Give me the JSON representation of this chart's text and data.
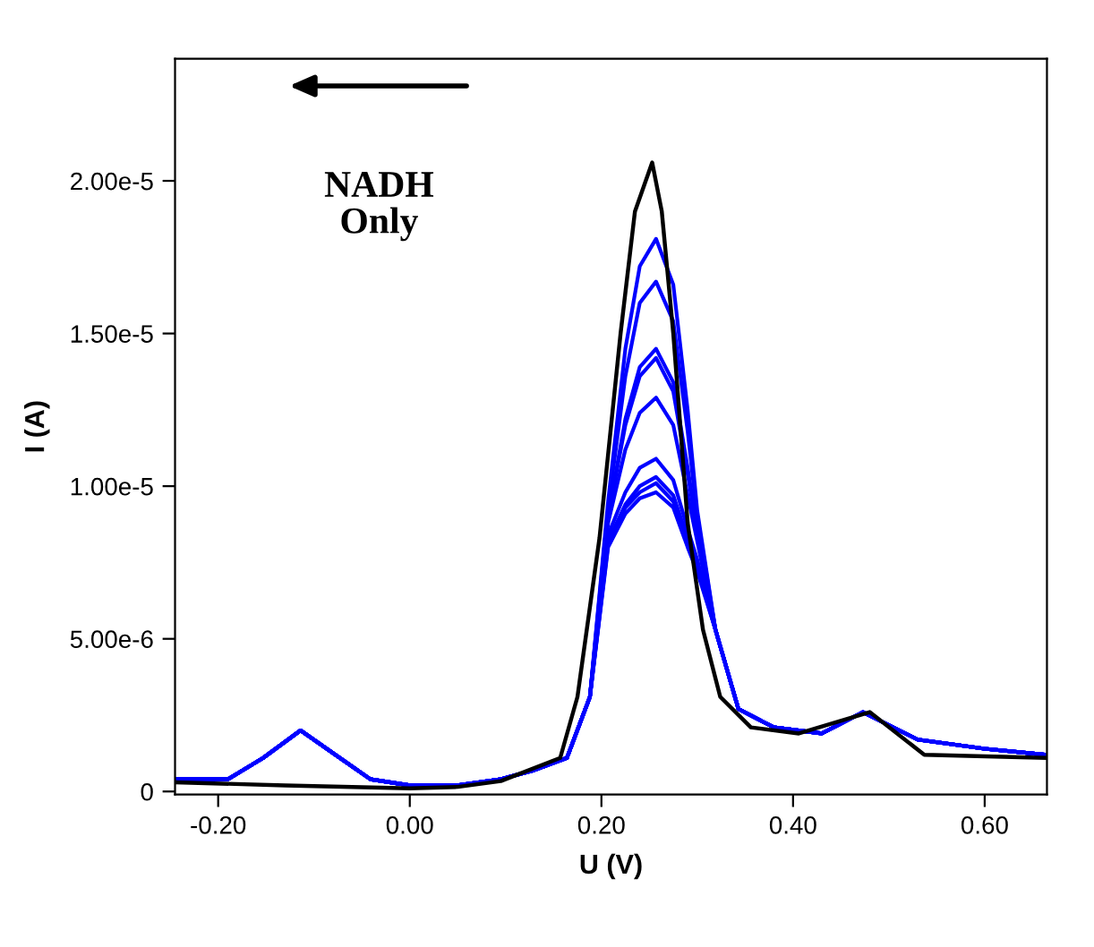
{
  "chart_data": {
    "type": "line",
    "xlabel": "U (V)",
    "ylabel": "I (A)",
    "annotations": [
      "NADH\nOnly"
    ],
    "xlim": [
      -0.245,
      0.665
    ],
    "ylim": [
      -1e-07,
      2.4e-05
    ],
    "xticks": [
      {
        "value": -0.2,
        "label": "-0.20"
      },
      {
        "value": 0.0,
        "label": "0.00"
      },
      {
        "value": 0.2,
        "label": "0.20"
      },
      {
        "value": 0.4,
        "label": "0.40"
      },
      {
        "value": 0.6,
        "label": "0.60"
      }
    ],
    "yticks": [
      0,
      {
        "value": 5e-06,
        "label": "5.00e-6"
      },
      {
        "value": 1e-05,
        "label": "1.00e-5"
      },
      {
        "value": 1.5e-05,
        "label": "1.50e-5"
      },
      {
        "value": 2e-05,
        "label": "2.00e-5"
      }
    ],
    "grid": false,
    "series": [
      {
        "color": "#0000ff",
        "x": [
          -0.245,
          -0.19,
          -0.153,
          -0.114,
          -0.073,
          -0.041,
          0.0,
          0.05,
          0.095,
          0.13,
          0.164,
          0.188,
          0.207,
          0.225,
          0.24,
          0.257,
          0.275,
          0.29,
          0.3,
          0.319,
          0.343,
          0.38,
          0.43,
          0.473,
          0.53,
          0.6,
          0.665
        ],
        "values": [
          4e-07,
          4e-07,
          1.1e-06,
          2e-06,
          1.1e-06,
          4e-07,
          2e-07,
          2e-07,
          4e-07,
          7e-07,
          1.1e-06,
          3.1e-06,
          9.5e-06,
          1.45e-05,
          1.72e-05,
          1.81e-05,
          1.66e-05,
          1.25e-05,
          9.2e-06,
          5.3e-06,
          2.7e-06,
          2.1e-06,
          1.9e-06,
          2.6e-06,
          1.7e-06,
          1.4e-06,
          1.2e-06
        ]
      },
      {
        "color": "#0000ff",
        "x": [
          -0.245,
          -0.19,
          -0.153,
          -0.114,
          -0.073,
          -0.041,
          0.0,
          0.05,
          0.095,
          0.13,
          0.164,
          0.188,
          0.207,
          0.225,
          0.24,
          0.257,
          0.275,
          0.29,
          0.3,
          0.319,
          0.343,
          0.38,
          0.43,
          0.473,
          0.53,
          0.6,
          0.665
        ],
        "values": [
          4e-07,
          4e-07,
          1.1e-06,
          2e-06,
          1.1e-06,
          4e-07,
          2e-07,
          2e-07,
          4e-07,
          7e-07,
          1.1e-06,
          3.1e-06,
          9.3e-06,
          1.36e-05,
          1.6e-05,
          1.67e-05,
          1.54e-05,
          1.18e-05,
          9e-06,
          5.3e-06,
          2.7e-06,
          2.1e-06,
          1.9e-06,
          2.6e-06,
          1.7e-06,
          1.4e-06,
          1.2e-06
        ]
      },
      {
        "color": "#0000ff",
        "x": [
          -0.245,
          -0.19,
          -0.153,
          -0.114,
          -0.073,
          -0.041,
          0.0,
          0.05,
          0.095,
          0.13,
          0.164,
          0.188,
          0.207,
          0.225,
          0.24,
          0.257,
          0.275,
          0.29,
          0.3,
          0.319,
          0.343,
          0.38,
          0.43,
          0.473,
          0.53,
          0.6,
          0.665
        ],
        "values": [
          4e-07,
          4e-07,
          1.1e-06,
          2e-06,
          1.1e-06,
          4e-07,
          2e-07,
          2e-07,
          4e-07,
          7e-07,
          1.1e-06,
          3.1e-06,
          9e-06,
          1.22e-05,
          1.39e-05,
          1.45e-05,
          1.34e-05,
          1.06e-05,
          8.6e-06,
          5.3e-06,
          2.7e-06,
          2.1e-06,
          1.9e-06,
          2.6e-06,
          1.7e-06,
          1.4e-06,
          1.2e-06
        ]
      },
      {
        "color": "#0000ff",
        "x": [
          -0.245,
          -0.19,
          -0.153,
          -0.114,
          -0.073,
          -0.041,
          0.0,
          0.05,
          0.095,
          0.13,
          0.164,
          0.188,
          0.207,
          0.225,
          0.24,
          0.257,
          0.275,
          0.29,
          0.3,
          0.319,
          0.343,
          0.38,
          0.43,
          0.473,
          0.53,
          0.6,
          0.665
        ],
        "values": [
          4e-07,
          4e-07,
          1.1e-06,
          2e-06,
          1.1e-06,
          4e-07,
          2e-07,
          2e-07,
          4e-07,
          7e-07,
          1.1e-06,
          3.1e-06,
          9e-06,
          1.2e-05,
          1.36e-05,
          1.42e-05,
          1.31e-05,
          1.04e-05,
          8.5e-06,
          5.3e-06,
          2.7e-06,
          2.1e-06,
          1.9e-06,
          2.6e-06,
          1.7e-06,
          1.4e-06,
          1.2e-06
        ]
      },
      {
        "color": "#0000ff",
        "x": [
          -0.245,
          -0.19,
          -0.153,
          -0.114,
          -0.073,
          -0.041,
          0.0,
          0.05,
          0.095,
          0.13,
          0.164,
          0.188,
          0.207,
          0.225,
          0.24,
          0.257,
          0.275,
          0.29,
          0.3,
          0.319,
          0.343,
          0.38,
          0.43,
          0.473,
          0.53,
          0.6,
          0.665
        ],
        "values": [
          4e-07,
          4e-07,
          1.1e-06,
          2e-06,
          1.1e-06,
          4e-07,
          2e-07,
          2e-07,
          4e-07,
          7e-07,
          1.1e-06,
          3.1e-06,
          8.8e-06,
          1.12e-05,
          1.24e-05,
          1.29e-05,
          1.2e-05,
          9.7e-06,
          8.2e-06,
          5.3e-06,
          2.7e-06,
          2.1e-06,
          1.9e-06,
          2.6e-06,
          1.7e-06,
          1.4e-06,
          1.2e-06
        ]
      },
      {
        "color": "#0000ff",
        "x": [
          -0.245,
          -0.19,
          -0.153,
          -0.114,
          -0.073,
          -0.041,
          0.0,
          0.05,
          0.095,
          0.13,
          0.164,
          0.188,
          0.207,
          0.225,
          0.24,
          0.257,
          0.275,
          0.29,
          0.3,
          0.319,
          0.343,
          0.38,
          0.43,
          0.473,
          0.53,
          0.6,
          0.665
        ],
        "values": [
          4e-07,
          4e-07,
          1.1e-06,
          2e-06,
          1.1e-06,
          4e-07,
          2e-07,
          2e-07,
          4e-07,
          7e-07,
          1.1e-06,
          3.1e-06,
          8.4e-06,
          9.8e-06,
          1.06e-05,
          1.09e-05,
          1.02e-05,
          8.6e-06,
          7.6e-06,
          5.3e-06,
          2.7e-06,
          2.1e-06,
          1.9e-06,
          2.6e-06,
          1.7e-06,
          1.4e-06,
          1.2e-06
        ]
      },
      {
        "color": "#0000ff",
        "x": [
          -0.245,
          -0.19,
          -0.153,
          -0.114,
          -0.073,
          -0.041,
          0.0,
          0.05,
          0.095,
          0.13,
          0.164,
          0.188,
          0.207,
          0.225,
          0.24,
          0.257,
          0.275,
          0.29,
          0.3,
          0.319,
          0.343,
          0.38,
          0.43,
          0.473,
          0.53,
          0.6,
          0.665
        ],
        "values": [
          4e-07,
          4e-07,
          1.1e-06,
          2e-06,
          1.1e-06,
          4e-07,
          2e-07,
          2e-07,
          4e-07,
          7e-07,
          1.1e-06,
          3.1e-06,
          8.2e-06,
          9.4e-06,
          1e-05,
          1.03e-05,
          9.7e-06,
          8.3e-06,
          7.4e-06,
          5.3e-06,
          2.7e-06,
          2.1e-06,
          1.9e-06,
          2.6e-06,
          1.7e-06,
          1.4e-06,
          1.2e-06
        ]
      },
      {
        "color": "#0000ff",
        "x": [
          -0.245,
          -0.19,
          -0.153,
          -0.114,
          -0.073,
          -0.041,
          0.0,
          0.05,
          0.095,
          0.13,
          0.164,
          0.188,
          0.207,
          0.225,
          0.24,
          0.257,
          0.275,
          0.29,
          0.3,
          0.319,
          0.343,
          0.38,
          0.43,
          0.473,
          0.53,
          0.6,
          0.665
        ],
        "values": [
          4e-07,
          4e-07,
          1.1e-06,
          2e-06,
          1.1e-06,
          4e-07,
          2e-07,
          2e-07,
          4e-07,
          7e-07,
          1.1e-06,
          3.1e-06,
          8.1e-06,
          9.3e-06,
          9.8e-06,
          1.01e-05,
          9.5e-06,
          8.2e-06,
          7.3e-06,
          5.3e-06,
          2.7e-06,
          2.1e-06,
          1.9e-06,
          2.6e-06,
          1.7e-06,
          1.4e-06,
          1.2e-06
        ]
      },
      {
        "color": "#0000ff",
        "x": [
          -0.245,
          -0.19,
          -0.153,
          -0.114,
          -0.073,
          -0.041,
          0.0,
          0.05,
          0.095,
          0.13,
          0.164,
          0.188,
          0.207,
          0.225,
          0.24,
          0.257,
          0.275,
          0.29,
          0.3,
          0.319,
          0.343,
          0.38,
          0.43,
          0.473,
          0.53,
          0.6,
          0.665
        ],
        "values": [
          4e-07,
          4e-07,
          1.1e-06,
          2e-06,
          1.1e-06,
          4e-07,
          2e-07,
          2e-07,
          4e-07,
          7e-07,
          1.1e-06,
          3.1e-06,
          8e-06,
          9.1e-06,
          9.6e-06,
          9.8e-06,
          9.3e-06,
          8e-06,
          7.2e-06,
          5.3e-06,
          2.7e-06,
          2.1e-06,
          1.9e-06,
          2.6e-06,
          1.7e-06,
          1.4e-06,
          1.2e-06
        ]
      },
      {
        "color": "#000000",
        "x": [
          -0.245,
          -0.13,
          0.0,
          0.05,
          0.095,
          0.157,
          0.175,
          0.198,
          0.22,
          0.235,
          0.253,
          0.263,
          0.275,
          0.29,
          0.306,
          0.324,
          0.356,
          0.406,
          0.48,
          0.537,
          0.665
        ],
        "values": [
          3e-07,
          2e-07,
          1e-07,
          1.5e-07,
          3.4e-07,
          1.1e-06,
          3.1e-06,
          8.3e-06,
          1.5e-05,
          1.9e-05,
          2.06e-05,
          1.9e-05,
          1.5e-05,
          8.8e-06,
          5.3e-06,
          3.1e-06,
          2.1e-06,
          1.9e-06,
          2.6e-06,
          1.2e-06,
          1.1e-06
        ]
      }
    ]
  }
}
